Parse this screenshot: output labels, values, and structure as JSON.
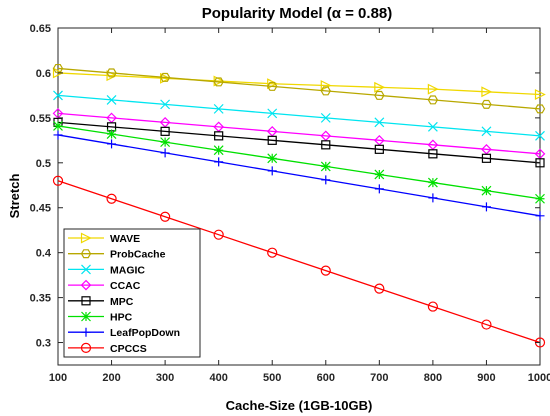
{
  "chart_data": {
    "type": "line",
    "title": "Popularity Model (α = 0.88)",
    "xlabel": "Cache-Size (1GB-10GB)",
    "ylabel": "Stretch",
    "xlim": [
      100,
      1000
    ],
    "ylim": [
      0.275,
      0.65
    ],
    "xticks": [
      100,
      200,
      300,
      400,
      500,
      600,
      700,
      800,
      900,
      1000
    ],
    "yticks": [
      0.3,
      0.35,
      0.4,
      0.45,
      0.5,
      0.55,
      0.6,
      0.65
    ],
    "ytick_labels": [
      "0.3",
      "0.35",
      "0.4",
      "0.45",
      "0.5",
      "0.55",
      "0.6",
      "0.65"
    ],
    "grid": false,
    "legend_position": "bottom-left",
    "x": [
      100,
      200,
      300,
      400,
      500,
      600,
      700,
      800,
      900,
      1000
    ],
    "series": [
      {
        "name": "WAVE",
        "color": "#F0D800",
        "marker": "triangle-right",
        "values": [
          0.6,
          0.597,
          0.594,
          0.591,
          0.588,
          0.586,
          0.584,
          0.582,
          0.579,
          0.576
        ]
      },
      {
        "name": "ProbCache",
        "color": "#B8A800",
        "marker": "hexagon",
        "values": [
          0.605,
          0.6,
          0.595,
          0.59,
          0.585,
          0.58,
          0.575,
          0.57,
          0.565,
          0.56
        ]
      },
      {
        "name": "MAGIC",
        "color": "#00E5F0",
        "marker": "x",
        "values": [
          0.575,
          0.57,
          0.565,
          0.56,
          0.555,
          0.55,
          0.545,
          0.54,
          0.535,
          0.53
        ]
      },
      {
        "name": "CCAC",
        "color": "#FF00FF",
        "marker": "diamond",
        "values": [
          0.555,
          0.55,
          0.545,
          0.54,
          0.535,
          0.53,
          0.525,
          0.52,
          0.515,
          0.51
        ]
      },
      {
        "name": "MPC",
        "color": "#000000",
        "marker": "square",
        "values": [
          0.545,
          0.54,
          0.535,
          0.53,
          0.525,
          0.52,
          0.515,
          0.51,
          0.505,
          0.5
        ]
      },
      {
        "name": "HPC",
        "color": "#00E000",
        "marker": "asterisk",
        "values": [
          0.541,
          0.532,
          0.523,
          0.514,
          0.505,
          0.496,
          0.487,
          0.478,
          0.469,
          0.46
        ]
      },
      {
        "name": "LeafPopDown",
        "color": "#0000FF",
        "marker": "plus",
        "values": [
          0.531,
          0.521,
          0.511,
          0.501,
          0.491,
          0.481,
          0.471,
          0.461,
          0.451,
          0.441
        ]
      },
      {
        "name": "CPCCS",
        "color": "#FF0000",
        "marker": "circle",
        "values": [
          0.48,
          0.46,
          0.44,
          0.42,
          0.4,
          0.38,
          0.36,
          0.34,
          0.32,
          0.3
        ]
      }
    ]
  }
}
